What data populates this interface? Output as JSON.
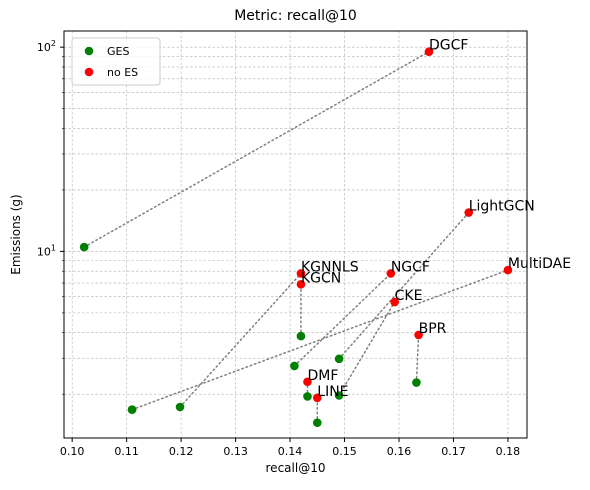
{
  "chart_data": {
    "type": "scatter",
    "title": "Metric: recall@10",
    "xlabel": "recall@10",
    "ylabel": "Emissions (g)",
    "xlim": [
      0.0985,
      0.1835
    ],
    "ylim": [
      1.22,
      120
    ],
    "yscale": "log",
    "grid": true,
    "grid_minor": true,
    "legend_position": "top-left",
    "x_ticks": [
      0.1,
      0.11,
      0.12,
      0.13,
      0.14,
      0.15,
      0.16,
      0.17,
      0.18
    ],
    "x_tick_labels": [
      "0.10",
      "0.11",
      "0.12",
      "0.13",
      "0.14",
      "0.15",
      "0.16",
      "0.17",
      "0.18"
    ],
    "y_major_ticks": [
      {
        "value": 10,
        "base": "10",
        "exp": "1"
      },
      {
        "value": 100,
        "base": "10",
        "exp": "2"
      }
    ],
    "series": [
      {
        "name": "GES",
        "color": "#008000",
        "points": [
          {
            "model": "DGCF",
            "x": 0.1022,
            "y": 10.5
          },
          {
            "model": "LightGCN",
            "x": 0.111,
            "y": 1.68
          },
          {
            "model": "MultiDAE",
            "x": 0.111,
            "y": 1.68
          },
          {
            "model": "KGNNLS",
            "x": 0.1198,
            "y": 1.73
          },
          {
            "model": "KGCN",
            "x": 0.142,
            "y": 3.85
          },
          {
            "model": "NGCF",
            "x": 0.1408,
            "y": 2.75
          },
          {
            "model": "DMF",
            "x": 0.1432,
            "y": 1.95
          },
          {
            "model": "LINE",
            "x": 0.145,
            "y": 1.45
          },
          {
            "model": "CKE",
            "x": 0.149,
            "y": 1.97
          },
          {
            "model": "BPR",
            "x": 0.1632,
            "y": 2.28
          }
        ]
      },
      {
        "name": "no ES",
        "color": "#ff0000",
        "points": [
          {
            "model": "DGCF",
            "x": 0.1655,
            "y": 95
          },
          {
            "model": "LightGCN",
            "x": 0.1728,
            "y": 15.5
          },
          {
            "model": "MultiDAE",
            "x": 0.18,
            "y": 8.1
          },
          {
            "model": "KGNNLS",
            "x": 0.142,
            "y": 7.8
          },
          {
            "model": "KGCN",
            "x": 0.142,
            "y": 6.9
          },
          {
            "model": "NGCF",
            "x": 0.1585,
            "y": 7.8
          },
          {
            "model": "CKE",
            "x": 0.1592,
            "y": 5.65
          },
          {
            "model": "BPR",
            "x": 0.1636,
            "y": 3.9
          },
          {
            "model": "DMF",
            "x": 0.1432,
            "y": 2.3
          },
          {
            "model": "LINE",
            "x": 0.145,
            "y": 1.92
          }
        ]
      }
    ],
    "connections": [
      {
        "ges": {
          "x": 0.1022,
          "y": 10.5
        },
        "noes": {
          "x": 0.1655,
          "y": 95
        }
      },
      {
        "ges": {
          "x": 0.111,
          "y": 1.68
        },
        "noes": {
          "x": 0.18,
          "y": 8.1
        }
      },
      {
        "ges": {
          "x": 0.1198,
          "y": 1.73
        },
        "noes": {
          "x": 0.142,
          "y": 7.8
        }
      },
      {
        "ges": {
          "x": 0.142,
          "y": 3.85
        },
        "noes": {
          "x": 0.142,
          "y": 6.9
        }
      },
      {
        "ges": {
          "x": 0.1408,
          "y": 2.75
        },
        "noes": {
          "x": 0.1585,
          "y": 7.8
        }
      },
      {
        "ges": {
          "x": 0.149,
          "y": 2.98
        },
        "noes": {
          "x": 0.1728,
          "y": 15.5
        }
      },
      {
        "ges": {
          "x": 0.149,
          "y": 1.97
        },
        "noes": {
          "x": 0.1592,
          "y": 5.65
        }
      },
      {
        "ges": {
          "x": 0.1632,
          "y": 2.28
        },
        "noes": {
          "x": 0.1636,
          "y": 3.9
        }
      },
      {
        "ges": {
          "x": 0.1432,
          "y": 1.95
        },
        "noes": {
          "x": 0.1432,
          "y": 2.3
        }
      },
      {
        "ges": {
          "x": 0.145,
          "y": 1.45
        },
        "noes": {
          "x": 0.145,
          "y": 1.92
        }
      }
    ],
    "extra_ges_points": [
      {
        "x": 0.149,
        "y": 2.98
      }
    ],
    "annotations": [
      {
        "text": "DGCF",
        "x": 0.1655,
        "y": 95
      },
      {
        "text": "LightGCN",
        "x": 0.1728,
        "y": 15.5
      },
      {
        "text": "MultiDAE",
        "x": 0.18,
        "y": 8.1
      },
      {
        "text": "KGNNLS",
        "x": 0.142,
        "y": 7.8
      },
      {
        "text": "KGCN",
        "x": 0.142,
        "y": 6.9
      },
      {
        "text": "NGCF",
        "x": 0.1585,
        "y": 7.8
      },
      {
        "text": "CKE",
        "x": 0.1592,
        "y": 5.65
      },
      {
        "text": "BPR",
        "x": 0.1636,
        "y": 3.9
      },
      {
        "text": "DMF",
        "x": 0.1432,
        "y": 2.3
      },
      {
        "text": "LINE",
        "x": 0.145,
        "y": 1.92
      }
    ]
  }
}
